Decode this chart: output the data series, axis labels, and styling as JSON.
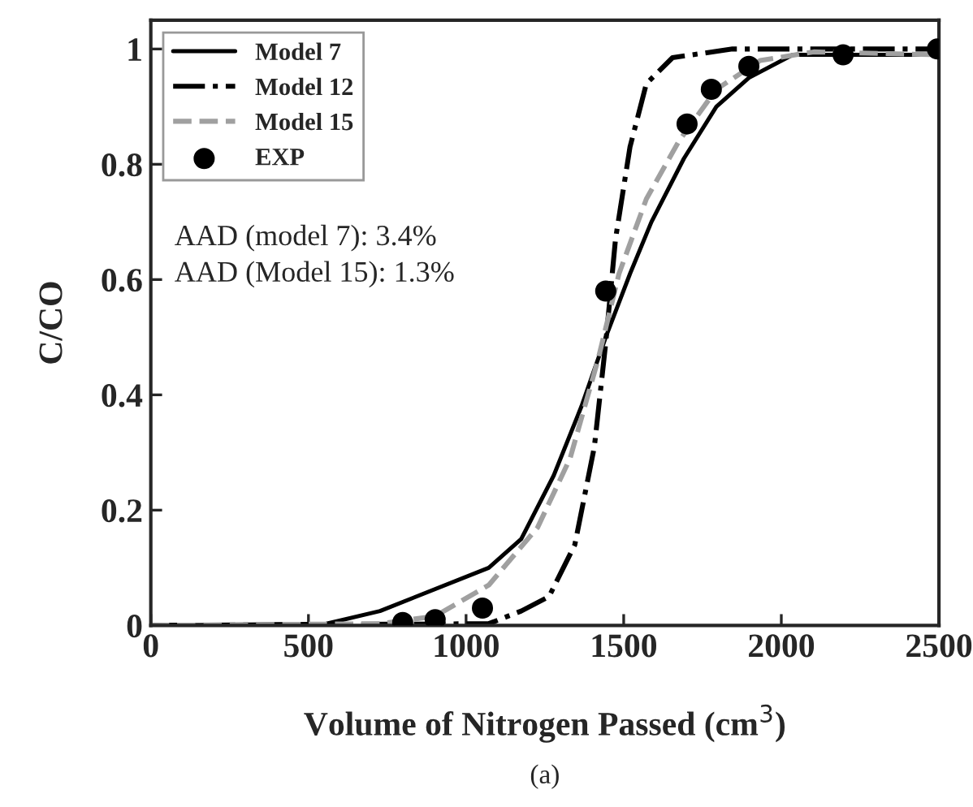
{
  "chart_data": {
    "type": "line",
    "xlabel": "Volume of Nitrogen Passed (cm$^{3}$)",
    "ylabel": "C/CO",
    "xlim": [
      0,
      2500
    ],
    "xticks": [
      0,
      500,
      1000,
      1500,
      2000,
      2500
    ],
    "ylim": [
      0,
      1.05
    ],
    "yticks": [
      0,
      0.2,
      0.4,
      0.6,
      0.8,
      1
    ],
    "grid": false,
    "legend": "top left",
    "series": [
      {
        "name": "Model 7",
        "color": "#000000",
        "line_style": "solid",
        "marker": "none",
        "x": [
          0,
          557,
          727,
          1072,
          1175,
          1278,
          1366,
          1443,
          1520,
          1588,
          1691,
          1794,
          1897,
          2036,
          2500
        ],
        "values": [
          0,
          0.003,
          0.025,
          0.1,
          0.15,
          0.26,
          0.38,
          0.5,
          0.61,
          0.7,
          0.81,
          0.9,
          0.95,
          0.99,
          0.99
        ]
      },
      {
        "name": "Model 12",
        "color": "#000000",
        "line_style": "dashdot",
        "marker": "none",
        "x": [
          0,
          1072,
          1175,
          1263,
          1345,
          1407,
          1443,
          1474,
          1520,
          1572,
          1655,
          1845,
          2500
        ],
        "values": [
          0,
          0.003,
          0.025,
          0.05,
          0.14,
          0.31,
          0.49,
          0.67,
          0.83,
          0.94,
          0.985,
          1.0,
          1.0
        ]
      },
      {
        "name": "Model 15",
        "color": "#a0a0a0",
        "line_style": "dashed",
        "marker": "none",
        "x": [
          0,
          727,
          902,
          1072,
          1227,
          1330,
          1418,
          1485,
          1572,
          1675,
          1794,
          1933,
          2103,
          2500
        ],
        "values": [
          0,
          0.003,
          0.016,
          0.07,
          0.17,
          0.29,
          0.46,
          0.61,
          0.74,
          0.84,
          0.93,
          0.98,
          0.995,
          0.99
        ]
      },
      {
        "name": "EXP",
        "type": "scatter",
        "color": "#000000",
        "marker": "circle",
        "x": [
          799,
          902,
          1052,
          1443,
          1701,
          1778,
          1897,
          2196,
          2495
        ],
        "values": [
          0.005,
          0.01,
          0.03,
          0.58,
          0.87,
          0.93,
          0.97,
          0.99,
          1.0
        ]
      }
    ],
    "annotations": [
      "AAD (model 7): 3.4%",
      "AAD (Model 15): 1.3%",
      "(a)"
    ]
  }
}
